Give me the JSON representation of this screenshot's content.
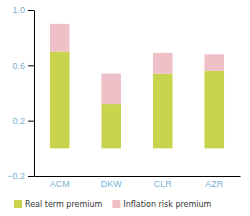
{
  "chart_data": {
    "type": "bar",
    "stacked": true,
    "categories": [
      "ACM",
      "DKW",
      "CLR",
      "AZR"
    ],
    "series": [
      {
        "name": "Real term premium",
        "color": "#c8d44e",
        "values": [
          0.7,
          0.32,
          0.54,
          0.56
        ]
      },
      {
        "name": "Inflation risk premium",
        "color": "#f0c0c8",
        "values": [
          0.2,
          0.22,
          0.15,
          0.12
        ]
      }
    ],
    "ylim": [
      -0.2,
      1.0
    ],
    "yticks": [
      {
        "value": -0.2,
        "label": "−0.2"
      },
      0.2,
      0.6,
      {
        "value": 1.0,
        "label": "1.0"
      }
    ],
    "legend": "bottom"
  }
}
